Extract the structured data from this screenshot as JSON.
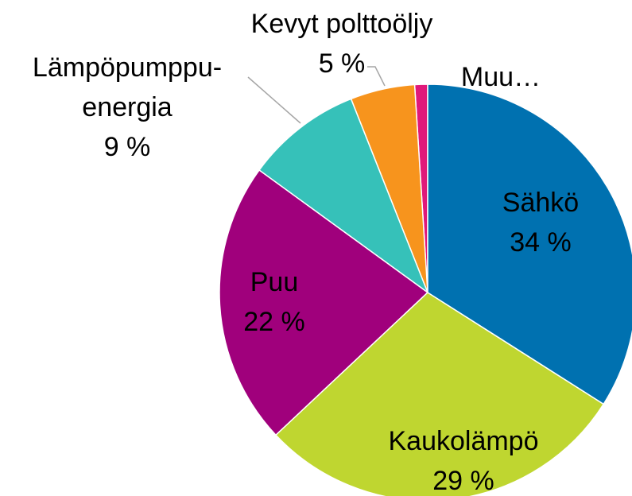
{
  "chart_data": {
    "type": "pie",
    "categories": [
      "Sähkö",
      "Kaukolämpö",
      "Puu",
      "Lämpöpumppu-energia",
      "Kevyt polttoöljy",
      "Muu…"
    ],
    "values": [
      34,
      29,
      22,
      9,
      5,
      1
    ],
    "value_labels": [
      "34 %",
      "29 %",
      "22 %",
      "9 %",
      "5 %",
      null
    ],
    "colors": [
      "#0071b0",
      "#bfd630",
      "#a0007c",
      "#36c1b9",
      "#f7941d",
      "#e0197a"
    ]
  }
}
